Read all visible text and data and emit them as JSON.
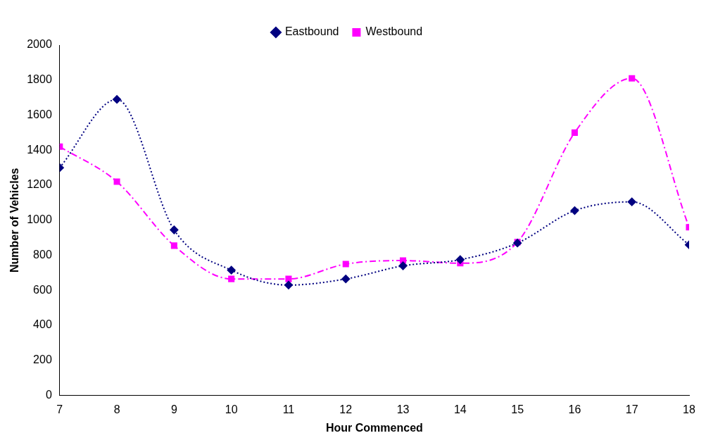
{
  "chart_data": {
    "type": "line",
    "xlabel": "Hour Commenced",
    "ylabel": "Number of Vehicles",
    "x": [
      7,
      8,
      9,
      10,
      11,
      12,
      13,
      14,
      15,
      16,
      17,
      18
    ],
    "series": [
      {
        "name": "Eastbound",
        "color": "#000080",
        "marker": "diamond",
        "line_style": "dotted",
        "values": [
          1300,
          1690,
          945,
          715,
          630,
          665,
          740,
          775,
          870,
          1055,
          1105,
          860
        ]
      },
      {
        "name": "Westbound",
        "color": "#ff00ff",
        "marker": "square",
        "line_style": "dashed",
        "values": [
          1420,
          1220,
          855,
          665,
          665,
          750,
          770,
          755,
          875,
          1500,
          1810,
          960
        ]
      }
    ],
    "xlim": [
      7,
      18
    ],
    "xticks": [
      7,
      8,
      9,
      10,
      11,
      12,
      13,
      14,
      15,
      16,
      17,
      18
    ],
    "ylim": [
      0,
      2000
    ],
    "yticks": [
      0,
      200,
      400,
      600,
      800,
      1000,
      1200,
      1400,
      1600,
      1800,
      2000
    ],
    "grid": false,
    "legend": "top"
  }
}
